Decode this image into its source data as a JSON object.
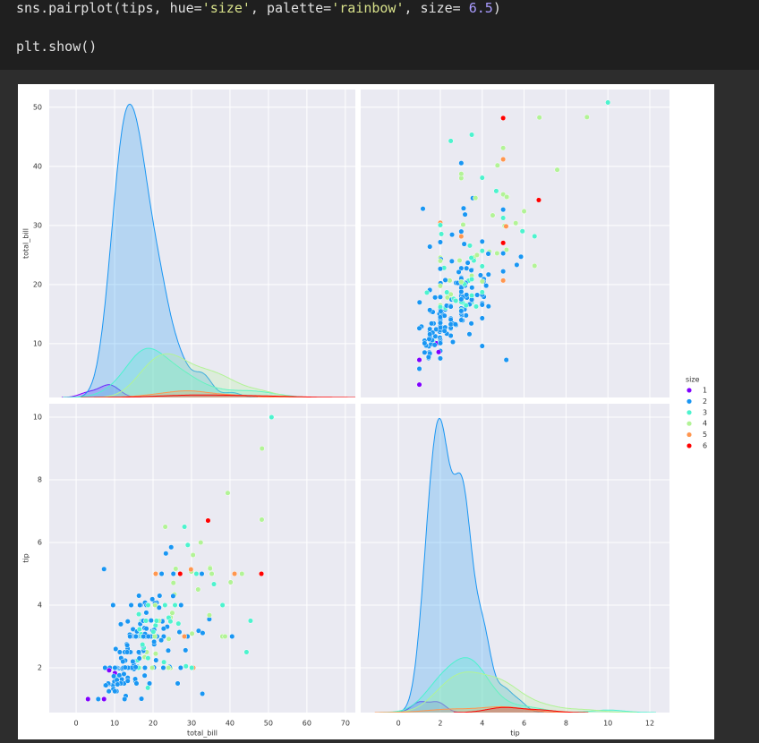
{
  "code": {
    "lines": [
      [
        {
          "text": "sns.pairplot(tips, hue=",
          "color": "#e0e0e0"
        },
        {
          "text": "'size'",
          "color": "#d7e08a"
        },
        {
          "text": ", palette=",
          "color": "#e0e0e0"
        },
        {
          "text": "'rainbow'",
          "color": "#d7e08a"
        },
        {
          "text": ", size= ",
          "color": "#e0e0e0"
        },
        {
          "text": "6.5",
          "color": "#a99cff"
        },
        {
          "text": ")",
          "color": "#e0e0e0"
        }
      ],
      [
        {
          "text": "plt.show()",
          "color": "#e0e0e0"
        }
      ]
    ]
  },
  "chart_data": {
    "type": "pairplot",
    "vars": [
      {
        "label": "total_bill",
        "xlim": [
          -7,
          72.6
        ],
        "xticks": [
          0,
          10,
          20,
          30,
          40,
          50,
          60,
          70
        ],
        "ylim": [
          0.9,
          53.0
        ],
        "yticks": [
          10,
          20,
          30,
          40,
          50
        ]
      },
      {
        "label": "tip",
        "xlim": [
          -1.8,
          12.94
        ],
        "xticks": [
          0,
          2,
          4,
          6,
          8,
          10,
          12
        ],
        "ylim": [
          0.57,
          10.43
        ],
        "yticks": [
          2,
          4,
          6,
          8,
          10
        ]
      }
    ],
    "hue": {
      "title": "size",
      "levels": [
        1,
        2,
        3,
        4,
        5,
        6
      ],
      "colors": [
        "#8000ff",
        "#1996f3",
        "#4df3ce",
        "#b2f396",
        "#ff964f",
        "#ff0000"
      ]
    },
    "grid": true,
    "points": [
      [
        16.99,
        1.01,
        2
      ],
      [
        10.34,
        1.66,
        3
      ],
      [
        21.01,
        3.5,
        3
      ],
      [
        23.68,
        3.31,
        2
      ],
      [
        24.59,
        3.61,
        4
      ],
      [
        25.29,
        4.71,
        4
      ],
      [
        8.77,
        2.0,
        2
      ],
      [
        26.88,
        3.12,
        4
      ],
      [
        15.04,
        1.96,
        2
      ],
      [
        14.78,
        3.23,
        2
      ],
      [
        10.27,
        1.71,
        2
      ],
      [
        35.26,
        5.0,
        4
      ],
      [
        15.42,
        1.57,
        2
      ],
      [
        18.43,
        3.0,
        4
      ],
      [
        14.83,
        3.02,
        2
      ],
      [
        21.58,
        3.92,
        2
      ],
      [
        10.33,
        1.67,
        3
      ],
      [
        16.29,
        3.71,
        3
      ],
      [
        16.97,
        3.5,
        3
      ],
      [
        20.65,
        3.35,
        3
      ],
      [
        17.92,
        4.08,
        2
      ],
      [
        20.29,
        2.75,
        2
      ],
      [
        15.77,
        2.23,
        2
      ],
      [
        39.42,
        7.58,
        4
      ],
      [
        19.82,
        3.18,
        2
      ],
      [
        17.81,
        2.34,
        4
      ],
      [
        13.37,
        2.0,
        2
      ],
      [
        12.69,
        2.0,
        2
      ],
      [
        21.7,
        4.3,
        2
      ],
      [
        19.65,
        3.0,
        2
      ],
      [
        9.55,
        1.45,
        2
      ],
      [
        18.35,
        2.5,
        4
      ],
      [
        15.06,
        3.0,
        2
      ],
      [
        20.69,
        2.45,
        4
      ],
      [
        17.78,
        3.27,
        2
      ],
      [
        24.06,
        3.6,
        3
      ],
      [
        16.31,
        2.0,
        3
      ],
      [
        16.93,
        3.07,
        3
      ],
      [
        18.69,
        2.31,
        3
      ],
      [
        31.27,
        5.0,
        3
      ],
      [
        16.04,
        2.24,
        3
      ],
      [
        17.46,
        2.54,
        2
      ],
      [
        13.94,
        3.06,
        2
      ],
      [
        9.68,
        1.32,
        2
      ],
      [
        30.4,
        5.6,
        4
      ],
      [
        18.29,
        3.0,
        2
      ],
      [
        22.23,
        5.0,
        2
      ],
      [
        32.4,
        6.0,
        4
      ],
      [
        28.55,
        2.05,
        3
      ],
      [
        18.04,
        3.0,
        2
      ],
      [
        12.54,
        2.5,
        2
      ],
      [
        10.29,
        2.6,
        2
      ],
      [
        34.81,
        5.2,
        4
      ],
      [
        9.94,
        1.56,
        2
      ],
      [
        25.56,
        4.34,
        4
      ],
      [
        19.49,
        3.51,
        2
      ],
      [
        38.01,
        3.0,
        4
      ],
      [
        26.41,
        1.5,
        2
      ],
      [
        11.24,
        1.76,
        2
      ],
      [
        48.27,
        6.73,
        4
      ],
      [
        20.29,
        3.21,
        2
      ],
      [
        13.81,
        2.0,
        2
      ],
      [
        11.02,
        1.98,
        2
      ],
      [
        18.29,
        3.76,
        4
      ],
      [
        17.59,
        2.64,
        3
      ],
      [
        20.08,
        3.15,
        3
      ],
      [
        16.45,
        2.47,
        2
      ],
      [
        3.07,
        1.0,
        1
      ],
      [
        20.23,
        2.01,
        2
      ],
      [
        15.01,
        2.09,
        2
      ],
      [
        12.02,
        1.97,
        2
      ],
      [
        17.07,
        3.0,
        3
      ],
      [
        26.86,
        3.14,
        2
      ],
      [
        25.28,
        5.0,
        2
      ],
      [
        14.73,
        2.2,
        2
      ],
      [
        10.51,
        1.25,
        2
      ],
      [
        17.92,
        3.08,
        2
      ],
      [
        27.2,
        4.0,
        4
      ],
      [
        22.76,
        3.0,
        2
      ],
      [
        17.29,
        2.71,
        2
      ],
      [
        19.44,
        3.0,
        2
      ],
      [
        16.66,
        3.4,
        2
      ],
      [
        10.07,
        1.83,
        1
      ],
      [
        32.68,
        5.0,
        2
      ],
      [
        15.98,
        2.03,
        2
      ],
      [
        34.83,
        5.17,
        4
      ],
      [
        13.03,
        2.0,
        2
      ],
      [
        18.28,
        4.0,
        2
      ],
      [
        24.71,
        5.85,
        2
      ],
      [
        21.16,
        3.0,
        2
      ],
      [
        28.97,
        3.0,
        2
      ],
      [
        22.49,
        3.5,
        2
      ],
      [
        5.75,
        1.0,
        2
      ],
      [
        16.32,
        4.3,
        2
      ],
      [
        22.75,
        3.25,
        2
      ],
      [
        40.17,
        4.73,
        4
      ],
      [
        27.28,
        4.0,
        2
      ],
      [
        12.03,
        1.5,
        2
      ],
      [
        21.01,
        3.0,
        2
      ],
      [
        12.46,
        1.5,
        2
      ],
      [
        11.35,
        2.5,
        2
      ],
      [
        15.38,
        3.0,
        2
      ],
      [
        44.3,
        2.5,
        3
      ],
      [
        22.42,
        3.48,
        2
      ],
      [
        20.92,
        4.08,
        2
      ],
      [
        15.36,
        1.64,
        2
      ],
      [
        20.49,
        4.06,
        2
      ],
      [
        25.21,
        4.29,
        2
      ],
      [
        18.24,
        3.76,
        2
      ],
      [
        14.31,
        4.0,
        2
      ],
      [
        14.0,
        3.0,
        2
      ],
      [
        7.25,
        1.0,
        1
      ],
      [
        38.07,
        4.0,
        3
      ],
      [
        23.95,
        2.55,
        2
      ],
      [
        25.71,
        4.0,
        3
      ],
      [
        17.31,
        3.5,
        2
      ],
      [
        29.93,
        5.07,
        4
      ],
      [
        10.65,
        1.5,
        2
      ],
      [
        12.43,
        1.8,
        2
      ],
      [
        24.08,
        2.92,
        4
      ],
      [
        11.69,
        2.31,
        2
      ],
      [
        13.42,
        1.68,
        2
      ],
      [
        14.26,
        2.5,
        2
      ],
      [
        15.95,
        2.0,
        2
      ],
      [
        8.52,
        1.48,
        2
      ],
      [
        22.82,
        2.18,
        3
      ],
      [
        19.08,
        1.5,
        2
      ],
      [
        20.27,
        2.83,
        2
      ],
      [
        11.17,
        1.5,
        2
      ],
      [
        12.26,
        2.0,
        2
      ],
      [
        18.26,
        3.25,
        2
      ],
      [
        8.51,
        1.25,
        2
      ],
      [
        10.33,
        2.0,
        2
      ],
      [
        14.15,
        2.0,
        2
      ],
      [
        16.0,
        2.0,
        2
      ],
      [
        13.16,
        2.75,
        2
      ],
      [
        17.47,
        3.5,
        2
      ],
      [
        34.3,
        6.7,
        6
      ],
      [
        41.19,
        5.0,
        5
      ],
      [
        27.05,
        5.0,
        6
      ],
      [
        16.43,
        2.3,
        2
      ],
      [
        8.35,
        1.5,
        2
      ],
      [
        18.64,
        1.36,
        3
      ],
      [
        11.87,
        1.63,
        2
      ],
      [
        9.78,
        1.73,
        2
      ],
      [
        7.51,
        2.0,
        2
      ],
      [
        14.07,
        2.5,
        2
      ],
      [
        13.13,
        2.0,
        2
      ],
      [
        17.26,
        2.74,
        3
      ],
      [
        24.55,
        2.0,
        4
      ],
      [
        19.77,
        2.0,
        4
      ],
      [
        29.85,
        5.14,
        5
      ],
      [
        48.17,
        5.0,
        6
      ],
      [
        25.0,
        3.75,
        4
      ],
      [
        13.39,
        2.61,
        2
      ],
      [
        16.49,
        2.0,
        4
      ],
      [
        21.5,
        3.5,
        4
      ],
      [
        12.66,
        2.5,
        2
      ],
      [
        16.21,
        2.0,
        3
      ],
      [
        17.51,
        3.0,
        2
      ],
      [
        24.52,
        3.48,
        3
      ],
      [
        20.76,
        2.24,
        2
      ],
      [
        31.71,
        4.5,
        4
      ],
      [
        10.59,
        1.61,
        2
      ],
      [
        10.63,
        2.0,
        2
      ],
      [
        50.81,
        10.0,
        3
      ],
      [
        15.81,
        3.16,
        2
      ],
      [
        7.25,
        5.15,
        2
      ],
      [
        31.85,
        3.18,
        2
      ],
      [
        16.82,
        4.0,
        2
      ],
      [
        32.9,
        3.11,
        2
      ],
      [
        17.89,
        2.0,
        2
      ],
      [
        14.48,
        2.0,
        2
      ],
      [
        9.6,
        4.0,
        2
      ],
      [
        34.63,
        3.55,
        2
      ],
      [
        34.65,
        3.68,
        4
      ],
      [
        23.33,
        5.65,
        2
      ],
      [
        45.35,
        3.5,
        3
      ],
      [
        23.17,
        6.5,
        4
      ],
      [
        40.55,
        3.0,
        2
      ],
      [
        20.69,
        5.0,
        5
      ],
      [
        20.9,
        3.5,
        3
      ],
      [
        30.46,
        2.0,
        5
      ],
      [
        18.15,
        3.5,
        3
      ],
      [
        23.1,
        4.0,
        3
      ],
      [
        15.69,
        1.5,
        2
      ],
      [
        19.81,
        4.19,
        2
      ],
      [
        28.44,
        2.56,
        2
      ],
      [
        15.48,
        2.02,
        2
      ],
      [
        16.58,
        4.0,
        2
      ],
      [
        7.56,
        1.44,
        2
      ],
      [
        10.34,
        2.0,
        2
      ],
      [
        43.11,
        5.0,
        4
      ],
      [
        13.0,
        2.0,
        2
      ],
      [
        13.51,
        2.0,
        2
      ],
      [
        18.71,
        4.0,
        3
      ],
      [
        12.74,
        2.01,
        2
      ],
      [
        16.4,
        2.5,
        2
      ],
      [
        20.53,
        4.0,
        4
      ],
      [
        16.47,
        3.23,
        3
      ],
      [
        26.59,
        3.41,
        3
      ],
      [
        38.73,
        3.0,
        4
      ],
      [
        24.27,
        2.03,
        2
      ],
      [
        12.76,
        2.23,
        2
      ],
      [
        30.06,
        2.0,
        3
      ],
      [
        25.89,
        5.16,
        4
      ],
      [
        48.33,
        9.0,
        4
      ],
      [
        13.27,
        2.5,
        2
      ],
      [
        28.17,
        6.5,
        3
      ],
      [
        12.9,
        1.1,
        2
      ],
      [
        28.15,
        3.0,
        5
      ],
      [
        11.59,
        1.5,
        2
      ],
      [
        7.74,
        1.44,
        2
      ],
      [
        30.14,
        3.09,
        4
      ],
      [
        12.16,
        2.2,
        2
      ],
      [
        13.42,
        3.48,
        2
      ],
      [
        8.58,
        1.92,
        1
      ],
      [
        15.98,
        3.0,
        2
      ],
      [
        13.42,
        1.58,
        2
      ],
      [
        16.27,
        2.5,
        2
      ],
      [
        10.09,
        2.0,
        2
      ],
      [
        20.45,
        3.0,
        4
      ],
      [
        13.28,
        2.72,
        2
      ],
      [
        22.12,
        2.88,
        2
      ],
      [
        24.01,
        2.0,
        4
      ],
      [
        15.69,
        3.0,
        3
      ],
      [
        11.61,
        3.39,
        2
      ],
      [
        10.77,
        1.47,
        2
      ],
      [
        15.53,
        3.0,
        2
      ],
      [
        10.07,
        1.25,
        2
      ],
      [
        12.6,
        1.0,
        2
      ],
      [
        32.83,
        1.17,
        2
      ],
      [
        35.83,
        4.67,
        3
      ],
      [
        29.03,
        5.92,
        3
      ],
      [
        27.18,
        2.0,
        2
      ],
      [
        22.67,
        2.0,
        2
      ],
      [
        17.82,
        1.75,
        2
      ],
      [
        18.78,
        3.0,
        2
      ]
    ]
  }
}
